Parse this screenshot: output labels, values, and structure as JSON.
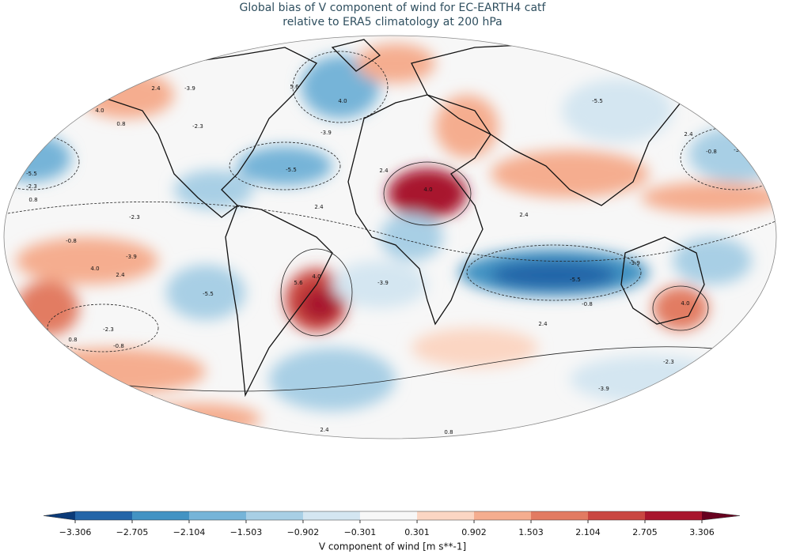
{
  "figure": {
    "title": [
      "Global bias of V component of wind for EC-EARTH4 catf",
      "relative to ERA5 climatology at 200 hPa"
    ],
    "colorbar": {
      "label": "V component of wind [m s**-1]",
      "ticks": [
        {
          "value": -3.306,
          "label": "−3.306"
        },
        {
          "value": -2.705,
          "label": "−2.705"
        },
        {
          "value": -2.104,
          "label": "−2.104"
        },
        {
          "value": -1.503,
          "label": "−1.503"
        },
        {
          "value": -0.902,
          "label": "−0.902"
        },
        {
          "value": -0.301,
          "label": "−0.301"
        },
        {
          "value": 0.301,
          "label": "0.301"
        },
        {
          "value": 0.902,
          "label": "0.902"
        },
        {
          "value": 1.503,
          "label": "1.503"
        },
        {
          "value": 2.104,
          "label": "2.104"
        },
        {
          "value": 2.705,
          "label": "2.705"
        },
        {
          "value": 3.306,
          "label": "3.306"
        }
      ],
      "colors": [
        "#2465a8",
        "#4393c3",
        "#76b4d8",
        "#a8cfe5",
        "#d4e6f1",
        "#f7f7f7",
        "#fbd6c3",
        "#f5ad8f",
        "#e27b62",
        "#c94741",
        "#a8162d"
      ],
      "extend_colors": [
        "#0b3a78",
        "#67001f"
      ]
    },
    "contour_labels": [
      "-0.8",
      "-0.8",
      "2.4",
      "-3.9",
      "5.6",
      "4.0",
      "-5.5",
      "4.0",
      "0.8",
      "-2.3",
      "-3.9",
      "-5.5",
      "-3.9",
      "2.4",
      "-0.8",
      "-3.9",
      "-5.5",
      "-2.3",
      "0.8",
      "4.0",
      "2.4",
      "2.4",
      "2.4",
      "-2.3",
      "-0.8",
      "-3.9",
      "4.0",
      "2.4",
      "-5.5",
      "5.6",
      "4.0",
      "-5.5",
      "-3.9",
      "-3.9",
      "-0.8",
      "4.0",
      "2.4",
      "0.8",
      "-2.3",
      "-0.8",
      "0.8",
      "-0.8",
      "-2.3",
      "-3.9",
      "2.4",
      "0.8",
      "-0.8"
    ]
  }
}
